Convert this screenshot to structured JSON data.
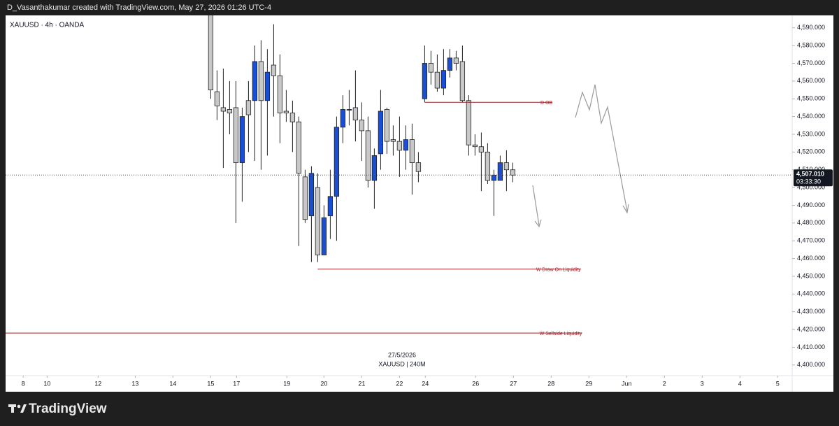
{
  "header": "D_Vasanthakumar created with TradingView.com, May 27, 2026 01:26 UTC-4",
  "footer": "TradingView",
  "chart_data": {
    "type": "candlestick",
    "symbol": "XAUUSD · 4h · OANDA",
    "watermark": [
      "27/5/2026",
      "XAUUSD | 240M"
    ],
    "up_color": "#1b4fd3",
    "down_color": "#c8c8c8",
    "x": [
      0,
      1,
      2,
      3,
      4,
      5,
      6,
      7,
      8,
      9,
      10,
      11,
      12,
      13,
      14,
      15,
      16,
      17,
      18,
      19,
      20,
      21,
      22,
      23,
      24,
      25,
      26,
      27,
      28,
      29,
      30,
      31,
      32,
      33,
      34,
      35,
      36,
      37,
      38,
      39,
      40,
      41,
      42,
      43,
      44,
      45,
      46,
      47,
      48
    ],
    "open": [
      4598,
      4554,
      4545,
      4544,
      4545,
      4514,
      4549,
      4549,
      4571,
      4549,
      4569,
      4563,
      4543,
      4542,
      4537,
      4506,
      4484,
      4500,
      4462,
      4484,
      4495,
      4534,
      4544,
      4545,
      4538,
      4532,
      4504,
      4519,
      4544,
      4527,
      4526,
      4521,
      4527,
      4514,
      4550,
      4570,
      4565,
      4556,
      4566,
      4573,
      4571,
      4549,
      4524,
      4523,
      4520,
      4504,
      4504,
      4514,
      4510
    ],
    "high": [
      4600,
      4566,
      4567,
      4560,
      4560,
      4545,
      4560,
      4580,
      4583,
      4578,
      4592,
      4575,
      4555,
      4549,
      4540,
      4510,
      4512,
      4508,
      4490,
      4510,
      4540,
      4552,
      4555,
      4566,
      4548,
      4540,
      4522,
      4555,
      4545,
      4535,
      4540,
      4535,
      4536,
      4520,
      4580,
      4577,
      4575,
      4578,
      4578,
      4577,
      4580,
      4552,
      4530,
      4531,
      4525,
      4510,
      4518,
      4521,
      4514
    ],
    "low": [
      4550,
      4538,
      4511,
      4530,
      4480,
      4492,
      4520,
      4515,
      4510,
      4518,
      4540,
      4525,
      4537,
      4520,
      4467,
      4480,
      4458,
      4458,
      4462,
      4471,
      4470,
      4525,
      4535,
      4526,
      4515,
      4500,
      4488,
      4510,
      4519,
      4518,
      4506,
      4510,
      4496,
      4503,
      4548,
      4558,
      4554,
      4552,
      4562,
      4566,
      4548,
      4518,
      4518,
      4498,
      4502,
      4484,
      4505,
      4498,
      4503
    ],
    "close": [
      4555,
      4546,
      4543,
      4542,
      4514,
      4540,
      4541,
      4571,
      4549,
      4565,
      4563,
      4542,
      4542,
      4537,
      4508,
      4482,
      4508,
      4462,
      4483,
      4495,
      4534,
      4544,
      4544,
      4538,
      4532,
      4504,
      4518,
      4543,
      4526,
      4526,
      4521,
      4527,
      4514,
      4509,
      4570,
      4565,
      4556,
      4566,
      4573,
      4570,
      4549,
      4524,
      4523,
      4520,
      4504,
      4507,
      4514,
      4510,
      4507
    ],
    "xlim": [
      -32.6,
      92.4
    ],
    "xticks": [
      {
        "value": -29.8,
        "label": "8"
      },
      {
        "value": -26,
        "label": "10"
      },
      {
        "value": -17.9,
        "label": "12"
      },
      {
        "value": -12,
        "label": "13"
      },
      {
        "value": -6,
        "label": "14"
      },
      {
        "value": 0,
        "label": "15"
      },
      {
        "value": 4.1,
        "label": "17"
      },
      {
        "value": 12.1,
        "label": "19"
      },
      {
        "value": 18,
        "label": "20"
      },
      {
        "value": 24,
        "label": "21"
      },
      {
        "value": 30,
        "label": "22"
      },
      {
        "value": 34.1,
        "label": "24"
      },
      {
        "value": 42.1,
        "label": "26"
      },
      {
        "value": 48.1,
        "label": "27"
      },
      {
        "value": 54.1,
        "label": "28"
      },
      {
        "value": 60.1,
        "label": "29"
      },
      {
        "value": 66.1,
        "label": "Jun"
      },
      {
        "value": 72.1,
        "label": "2"
      },
      {
        "value": 78.1,
        "label": "3"
      },
      {
        "value": 84.1,
        "label": "4"
      },
      {
        "value": 90.1,
        "label": "5"
      }
    ],
    "ylim": [
      4394,
      4597
    ],
    "yticks": [
      {
        "value": 4400,
        "label": "4,400.000"
      },
      {
        "value": 4410,
        "label": "4,410.000"
      },
      {
        "value": 4420,
        "label": "4,420.000"
      },
      {
        "value": 4430,
        "label": "4,430.000"
      },
      {
        "value": 4440,
        "label": "4,440.000"
      },
      {
        "value": 4450,
        "label": "4,450.000"
      },
      {
        "value": 4460,
        "label": "4,460.000"
      },
      {
        "value": 4470,
        "label": "4,470.000"
      },
      {
        "value": 4480,
        "label": "4,480.000"
      },
      {
        "value": 4490,
        "label": "4,490.000"
      },
      {
        "value": 4500,
        "label": "4,500.000"
      },
      {
        "value": 4510,
        "label": "4,510.000"
      },
      {
        "value": 4520,
        "label": "4,520.000"
      },
      {
        "value": 4530,
        "label": "4,530.000"
      },
      {
        "value": 4540,
        "label": "4,540.000"
      },
      {
        "value": 4550,
        "label": "4,550.000"
      },
      {
        "value": 4560,
        "label": "4,560.000"
      },
      {
        "value": 4570,
        "label": "4,570.000"
      },
      {
        "value": 4580,
        "label": "4,580.000"
      },
      {
        "value": 4590,
        "label": "4,590.000"
      }
    ],
    "levels": [
      {
        "label": "D OB",
        "value": 4548,
        "from": 34,
        "to": 54.3
      },
      {
        "label": "W Draw On Liquidity",
        "value": 4454,
        "from": 17,
        "to": 58.8
      },
      {
        "label": "W Sellside Liquidity",
        "value": 4418,
        "from": -32.6,
        "to": 59
      }
    ],
    "level_color": "#9b2226",
    "last_price": {
      "value": 4507.01,
      "label": "4,507.010",
      "countdown": "03:33:30"
    }
  }
}
